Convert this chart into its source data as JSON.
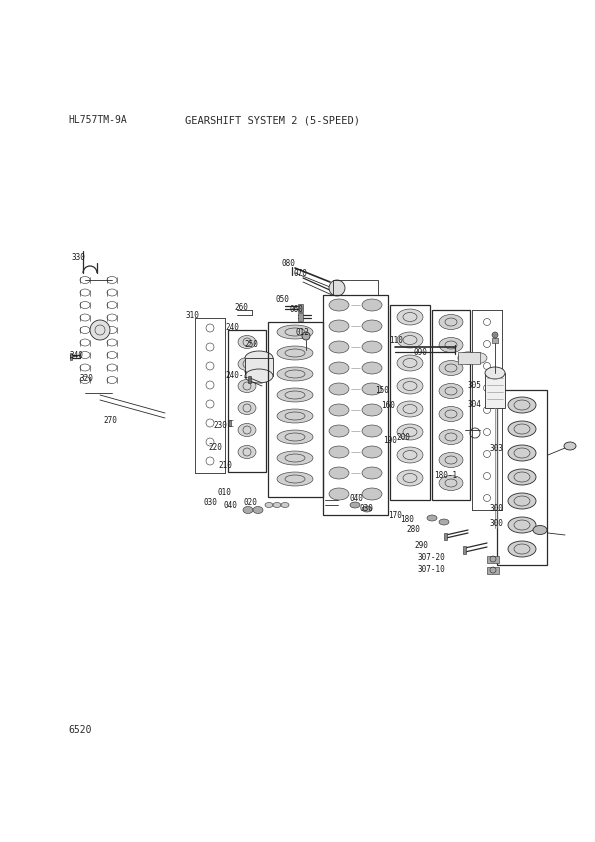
{
  "title_left": "HL757TM-9A",
  "title_right": "GEARSHIFT SYSTEM 2 (5-SPEED)",
  "footer": "6520",
  "bg_color": "#ffffff",
  "line_color": "#2a2a2a",
  "label_color": "#1a1a1a",
  "fig_w": 5.95,
  "fig_h": 8.42,
  "dpi": 100
}
